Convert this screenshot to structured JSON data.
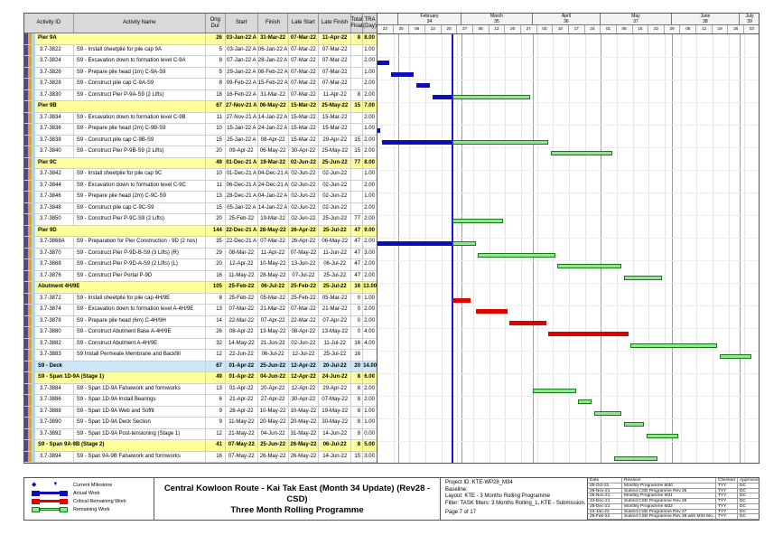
{
  "colors": {
    "actual": "#0d0dbe",
    "critical": "#e00000",
    "remaining_fill": "#92e692",
    "remaining_border": "#157a15",
    "summary_band": "#ffff9c",
    "deck_band": "#cde7f8",
    "data_date_line": "#1818d8",
    "stripes": [
      "#4a4a8c",
      "#dfa13f",
      "#a6d9ea"
    ]
  },
  "table": {
    "headers": [
      "Activity ID",
      "Activity Name",
      "Orig Dur",
      "Start",
      "Finish",
      "Late Start",
      "Late Finish",
      "Total Float",
      "TRA (Day)"
    ]
  },
  "chart_data": {
    "type": "gantt",
    "timeline": {
      "start_date": "2022-01-23",
      "end_date": "2022-07-10",
      "data_date": "2022-02-25",
      "months": [
        {
          "label": "",
          "num": "",
          "days": 9
        },
        {
          "label": "February",
          "num": "34",
          "days": 28
        },
        {
          "label": "March",
          "num": "35",
          "days": 31
        },
        {
          "label": "April",
          "num": "36",
          "days": 30
        },
        {
          "label": "May",
          "num": "37",
          "days": 31
        },
        {
          "label": "June",
          "num": "38",
          "days": 30
        },
        {
          "label": "July",
          "num": "39",
          "days": 9
        }
      ],
      "weeks": [
        "23",
        "30",
        "06",
        "13",
        "20",
        "27",
        "06",
        "13",
        "20",
        "27",
        "03",
        "10",
        "17",
        "24",
        "01",
        "08",
        "15",
        "22",
        "29",
        "05",
        "12",
        "19",
        "26",
        "03"
      ]
    },
    "activities": [
      {
        "name": "Pier 9A",
        "type": "summary",
        "dur": "26",
        "start": "03-Jan-22 A",
        "finish": "31-Mar-22",
        "ls": "07-Mar-22",
        "lf": "11-Apr-22",
        "tf": "8",
        "tra": "8.00",
        "bars": []
      },
      {
        "id": "3.7-3822",
        "name": "S9 - Install sheetpile for pile cap 9A",
        "dur": "5",
        "start": "03-Jan-22 A",
        "finish": "06-Jan-22 A",
        "ls": "07-Mar-22",
        "lf": "07-Mar-22",
        "tf": "",
        "tra": "1.00",
        "bars": []
      },
      {
        "id": "3.7-3824",
        "name": "S9 - Excavation down to formation level C-9A",
        "dur": "8",
        "start": "07-Jan-22 A",
        "finish": "28-Jan-22 A",
        "ls": "07-Mar-22",
        "lf": "07-Mar-22",
        "tf": "",
        "tra": "2.00",
        "bars": [
          [
            "actual",
            "2022-01-23",
            "2022-01-28"
          ]
        ]
      },
      {
        "id": "3.7-3826",
        "name": "S9 - Prepare pile head (1m) C-9A-S9",
        "dur": "5",
        "start": "29-Jan-22 A",
        "finish": "08-Feb-22 A",
        "ls": "07-Mar-22",
        "lf": "07-Mar-22",
        "tf": "",
        "tra": "1.00",
        "bars": [
          [
            "actual",
            "2022-01-29",
            "2022-02-08"
          ]
        ]
      },
      {
        "id": "3.7-3828",
        "name": "S9 - Construct pile cap C-9A-S9",
        "dur": "8",
        "start": "09-Feb-22 A",
        "finish": "15-Feb-22 A",
        "ls": "07-Mar-22",
        "lf": "07-Mar-22",
        "tf": "",
        "tra": "2.00",
        "bars": [
          [
            "actual",
            "2022-02-09",
            "2022-02-15"
          ]
        ]
      },
      {
        "id": "3.7-3830",
        "name": "S9 - Construct Pier P-9A-S9 (2 Lifts)",
        "dur": "18",
        "start": "16-Feb-22 A",
        "finish": "31-Mar-22",
        "ls": "07-Mar-22",
        "lf": "11-Apr-22",
        "tf": "8",
        "tra": "2.00",
        "bars": [
          [
            "actual",
            "2022-02-16",
            "2022-02-25"
          ],
          [
            "remaining",
            "2022-02-25",
            "2022-03-31"
          ]
        ]
      },
      {
        "name": "Pier 9B",
        "type": "summary",
        "dur": "67",
        "start": "27-Nov-21 A",
        "finish": "06-May-22",
        "ls": "15-Mar-22",
        "lf": "25-May-22",
        "tf": "15",
        "tra": "7.00",
        "bars": []
      },
      {
        "id": "3.7-3834",
        "name": "S9 - Excavation down to formation level C-9B",
        "dur": "11",
        "start": "27-Nov-21 A",
        "finish": "14-Jan-22 A",
        "ls": "15-Mar-22",
        "lf": "15-Mar-22",
        "tf": "",
        "tra": "2.00",
        "bars": []
      },
      {
        "id": "3.7-3836",
        "name": "S9 - Prepare pile head (2m) C-9B-S9",
        "dur": "10",
        "start": "15-Jan-22 A",
        "finish": "24-Jan-22 A",
        "ls": "15-Mar-22",
        "lf": "15-Mar-22",
        "tf": "",
        "tra": "1.00",
        "bars": [
          [
            "actual",
            "2022-01-23",
            "2022-01-24"
          ]
        ]
      },
      {
        "id": "3.7-3838",
        "name": "S9 - Construct pile cap C-9B-S9",
        "dur": "15",
        "start": "25-Jan-22 A",
        "finish": "08-Apr-22",
        "ls": "15-Mar-22",
        "lf": "29-Apr-22",
        "tf": "15",
        "tra": "2.00",
        "bars": [
          [
            "actual",
            "2022-01-25",
            "2022-02-25"
          ],
          [
            "remaining",
            "2022-02-25",
            "2022-04-08"
          ]
        ]
      },
      {
        "id": "3.7-3840",
        "name": "S9 - Construct Pier P-9B-S9 (2 Lifts)",
        "dur": "20",
        "start": "09-Apr-22",
        "finish": "06-May-22",
        "ls": "30-Apr-22",
        "lf": "25-May-22",
        "tf": "15",
        "tra": "2.00",
        "bars": [
          [
            "remaining",
            "2022-04-09",
            "2022-05-06"
          ]
        ]
      },
      {
        "name": "Pier 9C",
        "type": "summary",
        "dur": "49",
        "start": "01-Dec-21 A",
        "finish": "19-Mar-22",
        "ls": "02-Jun-22",
        "lf": "25-Jun-22",
        "tf": "77",
        "tra": "8.00",
        "bars": []
      },
      {
        "id": "3.7-3842",
        "name": "S9 - Install sheetpile for pile cap 9C",
        "dur": "10",
        "start": "01-Dec-21 A",
        "finish": "04-Dec-21 A",
        "ls": "02-Jun-22",
        "lf": "02-Jun-22",
        "tf": "",
        "tra": "1.00",
        "bars": []
      },
      {
        "id": "3.7-3844",
        "name": "S9 - Excavation down to formation level C-9C",
        "dur": "11",
        "start": "06-Dec-21 A",
        "finish": "24-Dec-21 A",
        "ls": "02-Jun-22",
        "lf": "02-Jun-22",
        "tf": "",
        "tra": "2.00",
        "bars": []
      },
      {
        "id": "3.7-3846",
        "name": "S9 - Prepare pile head (2m) C-9C-S9",
        "dur": "13",
        "start": "28-Dec-21 A",
        "finish": "04-Jan-22 A",
        "ls": "02-Jun-22",
        "lf": "02-Jun-22",
        "tf": "",
        "tra": "1.00",
        "bars": []
      },
      {
        "id": "3.7-3848",
        "name": "S9 - Construct pile cap C-9C-S9",
        "dur": "15",
        "start": "05-Jan-22 A",
        "finish": "14-Jan-22 A",
        "ls": "02-Jun-22",
        "lf": "02-Jun-22",
        "tf": "",
        "tra": "2.00",
        "bars": []
      },
      {
        "id": "3.7-3850",
        "name": "S9 - Construct Pier P-9C-S9 (2 Lifts)",
        "dur": "20",
        "start": "25-Feb-22",
        "finish": "19-Mar-22",
        "ls": "02-Jun-22",
        "lf": "25-Jun-22",
        "tf": "77",
        "tra": "2.00",
        "bars": [
          [
            "remaining",
            "2022-02-25",
            "2022-03-19"
          ]
        ]
      },
      {
        "name": "Pier 9D",
        "type": "summary",
        "dur": "144",
        "start": "22-Dec-21 A",
        "finish": "28-May-22",
        "ls": "26-Apr-22",
        "lf": "25-Jul-22",
        "tf": "47",
        "tra": "9.00",
        "bars": []
      },
      {
        "id": "3.7-3868A",
        "name": "S9 - Preparation for Pier Construction - 9D (2 nos)",
        "dur": "35",
        "start": "22-Dec-21 A",
        "finish": "07-Mar-22",
        "ls": "26-Apr-22",
        "lf": "06-May-22",
        "tf": "47",
        "tra": "2.00",
        "bars": [
          [
            "actual",
            "2022-01-23",
            "2022-02-25"
          ],
          [
            "remaining",
            "2022-02-25",
            "2022-03-07"
          ]
        ]
      },
      {
        "id": "3.7-3870",
        "name": "S9 - Construct Pier P-9D-B-S9 (3 Lifts) (R)",
        "dur": "29",
        "start": "08-Mar-22",
        "finish": "11-Apr-22",
        "ls": "07-May-22",
        "lf": "11-Jun-22",
        "tf": "47",
        "tra": "3.00",
        "bars": [
          [
            "remaining",
            "2022-03-08",
            "2022-04-11"
          ]
        ]
      },
      {
        "id": "3.7-3868",
        "name": "S9 - Construct Pier P-9D-A-S9 (2 Lifts) (L)",
        "dur": "20",
        "start": "12-Apr-22",
        "finish": "10-May-22",
        "ls": "13-Jun-22",
        "lf": "06-Jul-22",
        "tf": "47",
        "tra": "2.00",
        "bars": [
          [
            "remaining",
            "2022-04-12",
            "2022-05-10"
          ]
        ]
      },
      {
        "id": "3.7-3876",
        "name": "S9 - Construct Pier Portal P-9D",
        "dur": "16",
        "start": "11-May-22",
        "finish": "28-May-22",
        "ls": "07-Jul-22",
        "lf": "25-Jul-22",
        "tf": "47",
        "tra": "2.00",
        "bars": [
          [
            "remaining",
            "2022-05-11",
            "2022-05-28"
          ]
        ]
      },
      {
        "name": "Abutment 4H/9E",
        "type": "summary",
        "dur": "105",
        "start": "25-Feb-22",
        "finish": "06-Jul-22",
        "ls": "25-Feb-22",
        "lf": "25-Jul-22",
        "tf": "16",
        "tra": "13.00",
        "bars": []
      },
      {
        "id": "3.7-3872",
        "name": "S9 - Install sheetpile for pile cap 4H/9E",
        "dur": "8",
        "start": "25-Feb-22",
        "finish": "05-Mar-22",
        "ls": "25-Feb-22",
        "lf": "05-Mar-22",
        "tf": "0",
        "tra": "1.00",
        "bars": [
          [
            "critical",
            "2022-02-25",
            "2022-03-05"
          ]
        ]
      },
      {
        "id": "3.7-3874",
        "name": "S9 - Excavation down to formation level A-4H/9E",
        "dur": "13",
        "start": "07-Mar-22",
        "finish": "21-Mar-22",
        "ls": "07-Mar-22",
        "lf": "21-Mar-22",
        "tf": "0",
        "tra": "2.00",
        "bars": [
          [
            "critical",
            "2022-03-07",
            "2022-03-21"
          ]
        ]
      },
      {
        "id": "3.7-3878",
        "name": "S9 - Prepare pile head (6m) C-4H/9H",
        "dur": "14",
        "start": "22-Mar-22",
        "finish": "07-Apr-22",
        "ls": "22-Mar-22",
        "lf": "07-Apr-22",
        "tf": "0",
        "tra": "2.00",
        "bars": [
          [
            "critical",
            "2022-03-22",
            "2022-04-07"
          ]
        ]
      },
      {
        "id": "3.7-3880",
        "name": "S9 - Construct Abutment Base A-4H/9E",
        "dur": "26",
        "start": "08-Apr-22",
        "finish": "13-May-22",
        "ls": "08-Apr-22",
        "lf": "13-May-22",
        "tf": "0",
        "tra": "4.00",
        "bars": [
          [
            "critical",
            "2022-04-08",
            "2022-05-13"
          ]
        ]
      },
      {
        "id": "3.7-3882",
        "name": "S9 - Construct Abutment A-4H/9E",
        "dur": "32",
        "start": "14-May-22",
        "finish": "21-Jun-22",
        "ls": "02-Jun-22",
        "lf": "11-Jul-22",
        "tf": "16",
        "tra": "4.00",
        "bars": [
          [
            "remaining",
            "2022-05-14",
            "2022-06-21"
          ]
        ]
      },
      {
        "id": "3.7-3883",
        "name": "S9 Install Permeate Membrane and Backfill",
        "dur": "12",
        "start": "22-Jun-22",
        "finish": "06-Jul-22",
        "ls": "12-Jul-22",
        "lf": "25-Jul-22",
        "tf": "16",
        "tra": "",
        "bars": [
          [
            "remaining",
            "2022-06-22",
            "2022-07-06"
          ]
        ]
      },
      {
        "name": "S9 - Deck",
        "type": "deck",
        "dur": "67",
        "start": "01-Apr-22",
        "finish": "25-Jun-22",
        "ls": "12-Apr-22",
        "lf": "20-Jul-22",
        "tf": "20",
        "tra": "14.00",
        "bars": []
      },
      {
        "name": "S9 - Span 1D-9A (Stage 1)",
        "type": "summary",
        "dur": "49",
        "start": "01-Apr-22",
        "finish": "04-Jun-22",
        "ls": "12-Apr-22",
        "lf": "24-Jun-22",
        "tf": "8",
        "tra": "6.00",
        "bars": []
      },
      {
        "id": "3.7-3884",
        "name": "S9 - Span 1D-9A Falsework and formworks",
        "dur": "13",
        "start": "01-Apr-22",
        "finish": "20-Apr-22",
        "ls": "12-Apr-22",
        "lf": "29-Apr-22",
        "tf": "8",
        "tra": "2.00",
        "bars": [
          [
            "remaining",
            "2022-04-01",
            "2022-04-20"
          ]
        ]
      },
      {
        "id": "3.7-3886",
        "name": "S9 - Span 1D-9A Install Bearings",
        "dur": "6",
        "start": "21-Apr-22",
        "finish": "27-Apr-22",
        "ls": "30-Apr-22",
        "lf": "07-May-22",
        "tf": "8",
        "tra": "2.00",
        "bars": [
          [
            "remaining",
            "2022-04-21",
            "2022-04-27"
          ]
        ]
      },
      {
        "id": "3.7-3888",
        "name": "S9 - Span 1D-9A Web and Soffit",
        "dur": "9",
        "start": "28-Apr-22",
        "finish": "10-May-22",
        "ls": "10-May-22",
        "lf": "19-May-22",
        "tf": "8",
        "tra": "1.00",
        "bars": [
          [
            "remaining",
            "2022-04-28",
            "2022-05-10"
          ]
        ]
      },
      {
        "id": "3.7-3890",
        "name": "S9 - Span 1D-9A Deck Section",
        "dur": "9",
        "start": "11-May-22",
        "finish": "20-May-22",
        "ls": "20-May-22",
        "lf": "30-May-22",
        "tf": "8",
        "tra": "1.00",
        "bars": [
          [
            "remaining",
            "2022-05-11",
            "2022-05-20"
          ]
        ]
      },
      {
        "id": "3.7-3892",
        "name": "S9 - Span 1D-9A  Post-tensioning (Stage 1)",
        "dur": "12",
        "start": "21-May-22",
        "finish": "04-Jun-22",
        "ls": "31-May-22",
        "lf": "14-Jun-22",
        "tf": "8",
        "tra": "0.00",
        "bars": [
          [
            "remaining",
            "2022-05-21",
            "2022-06-04"
          ]
        ]
      },
      {
        "name": "S9 - Span 9A-9B (Stage 2)",
        "type": "summary",
        "dur": "41",
        "start": "07-May-22",
        "finish": "25-Jun-22",
        "ls": "26-May-22",
        "lf": "06-Jul-22",
        "tf": "8",
        "tra": "5.00",
        "bars": []
      },
      {
        "id": "3.7-3894",
        "name": "S9 - Span 9A-9B Falsework and formworks",
        "dur": "16",
        "start": "07-May-22",
        "finish": "26-May-22",
        "ls": "26-May-22",
        "lf": "14-Jun-22",
        "tf": "15",
        "tra": "3.00",
        "bars": [
          [
            "remaining",
            "2022-05-07",
            "2022-05-26"
          ]
        ]
      }
    ]
  },
  "legend": {
    "items": [
      {
        "label": "Current Milestone",
        "type": "milestone"
      },
      {
        "label": "Actual Work",
        "type": "actual"
      },
      {
        "label": "Critical Remaining Work",
        "type": "critical"
      },
      {
        "label": "Remaining Work",
        "type": "remaining"
      }
    ]
  },
  "footer": {
    "title_line1": "Central Kowloon Route - Kai Tak East (Month 34 Update) (Rev28 - CSD)",
    "title_line2": "Three Month Rolling Programme",
    "info": [
      "Project ID: KTE-WP28_M34",
      "Baseline:",
      "Layout: KTE - 3 Months Rolling Programme",
      "Filter: TASK filters: 3 Months Rolling_1, KTE - Submission."
    ],
    "page_label": "Page 7 of 17",
    "revisions": {
      "headers": [
        "Date",
        "Revision",
        "Checked",
        "Approved"
      ],
      "rows": [
        [
          "25-Oct-21",
          "Monthly Programme M30",
          "TYY",
          "DC"
        ],
        [
          "25-Nov-21",
          "Submit CSD Programme Rev 25",
          "TYY",
          "DC"
        ],
        [
          "25-Nov-21",
          "Monthly Programme M31",
          "TYY",
          "DC"
        ],
        [
          "24-Dec-21",
          "Submit CSD Programme Rev 26",
          "TYY",
          "DC"
        ],
        [
          "25-Dec-21",
          "Monthly Programme M32",
          "TYY",
          "DC"
        ],
        [
          "24-Jan-22",
          "Submit CSD Programme Rev 27",
          "TYY",
          "DC"
        ],
        [
          "25-Feb-22",
          "Submit CSD Programme Rev 28 with M34 Mo...",
          "TYY",
          "DC"
        ]
      ]
    }
  }
}
